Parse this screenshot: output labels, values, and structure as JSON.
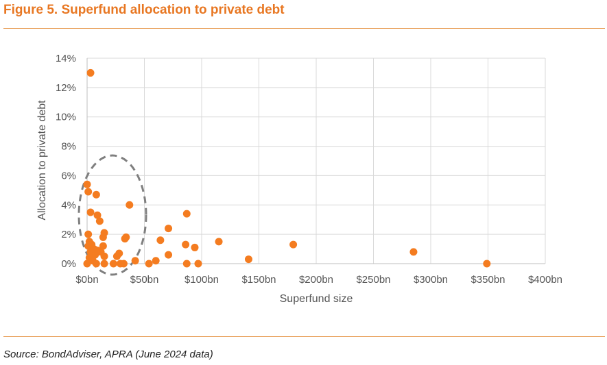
{
  "title": "Figure 5. Superfund allocation to private debt",
  "source": "Source: BondAdviser, APRA (June 2024 data)",
  "colors": {
    "accent": "#e87722",
    "point": "#f47c20",
    "grid": "#d9d9d9",
    "ellipse": "#7f7f7f"
  },
  "chart_data": {
    "type": "scatter",
    "title": "Figure 5. Superfund allocation to private debt",
    "xlabel": "Superfund size",
    "ylabel": "Allocation to private debt",
    "xlim": [
      0,
      400
    ],
    "ylim": [
      0,
      14
    ],
    "x_ticks": [
      0,
      50,
      100,
      150,
      200,
      250,
      300,
      350,
      400
    ],
    "x_tick_labels": [
      "$0bn",
      "$50bn",
      "$100bn",
      "$150bn",
      "$200bn",
      "$250bn",
      "$300bn",
      "$350bn",
      "$400bn"
    ],
    "y_ticks": [
      0,
      2,
      4,
      6,
      8,
      10,
      12,
      14
    ],
    "y_tick_labels": [
      "0%",
      "2%",
      "4%",
      "6%",
      "8%",
      "10%",
      "12%",
      "14%"
    ],
    "grid": true,
    "legend": "none",
    "annotation": "dashed ellipse highlighting small funds ($0bn-$50bn)",
    "series": [
      {
        "name": "Superfunds",
        "points": [
          {
            "x": 3,
            "y": 13.0
          },
          {
            "x": 0,
            "y": 5.4
          },
          {
            "x": 1,
            "y": 4.9
          },
          {
            "x": 8,
            "y": 4.7
          },
          {
            "x": 3,
            "y": 3.5
          },
          {
            "x": 9,
            "y": 3.3
          },
          {
            "x": 11,
            "y": 2.9
          },
          {
            "x": 15,
            "y": 2.1
          },
          {
            "x": 14,
            "y": 1.8
          },
          {
            "x": 1,
            "y": 2.0
          },
          {
            "x": 2,
            "y": 1.5
          },
          {
            "x": 1,
            "y": 1.2
          },
          {
            "x": 4,
            "y": 1.3
          },
          {
            "x": 14,
            "y": 1.2
          },
          {
            "x": 6,
            "y": 1.0
          },
          {
            "x": 9,
            "y": 0.9
          },
          {
            "x": 3,
            "y": 0.8
          },
          {
            "x": 12,
            "y": 0.8
          },
          {
            "x": 15,
            "y": 0.5
          },
          {
            "x": 7,
            "y": 0.6
          },
          {
            "x": 2,
            "y": 0.4
          },
          {
            "x": 0,
            "y": 0.0
          },
          {
            "x": 5,
            "y": 0.2
          },
          {
            "x": 8,
            "y": 0.0
          },
          {
            "x": 15,
            "y": 0.0
          },
          {
            "x": 37,
            "y": 4.0
          },
          {
            "x": 34,
            "y": 1.8
          },
          {
            "x": 33,
            "y": 1.7
          },
          {
            "x": 28,
            "y": 0.7
          },
          {
            "x": 26,
            "y": 0.5
          },
          {
            "x": 23,
            "y": 0.0
          },
          {
            "x": 29,
            "y": 0.0
          },
          {
            "x": 32,
            "y": 0.0
          },
          {
            "x": 42,
            "y": 0.2
          },
          {
            "x": 54,
            "y": 0.0
          },
          {
            "x": 60,
            "y": 0.2
          },
          {
            "x": 64,
            "y": 1.6
          },
          {
            "x": 71,
            "y": 2.4
          },
          {
            "x": 71,
            "y": 0.6
          },
          {
            "x": 87,
            "y": 3.4
          },
          {
            "x": 86,
            "y": 1.3
          },
          {
            "x": 94,
            "y": 1.1
          },
          {
            "x": 87,
            "y": 0.0
          },
          {
            "x": 97,
            "y": 0.0
          },
          {
            "x": 115,
            "y": 1.5
          },
          {
            "x": 141,
            "y": 0.3
          },
          {
            "x": 180,
            "y": 1.3
          },
          {
            "x": 285,
            "y": 0.8
          },
          {
            "x": 349,
            "y": 0.0
          }
        ]
      }
    ]
  }
}
